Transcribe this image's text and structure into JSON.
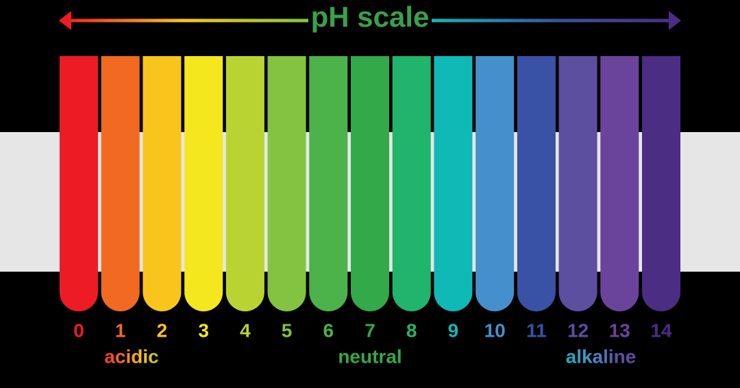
{
  "title": "pH scale",
  "tubes": [
    {
      "label": "0",
      "color": "#ed1c24"
    },
    {
      "label": "1",
      "color": "#f26a21"
    },
    {
      "label": "2",
      "color": "#f9c51c"
    },
    {
      "label": "3",
      "color": "#f5e71e"
    },
    {
      "label": "4",
      "color": "#b9d432"
    },
    {
      "label": "5",
      "color": "#84c341"
    },
    {
      "label": "6",
      "color": "#4bb34a"
    },
    {
      "label": "7",
      "color": "#33a94a"
    },
    {
      "label": "8",
      "color": "#21b46c"
    },
    {
      "label": "9",
      "color": "#0fb9b6"
    },
    {
      "label": "10",
      "color": "#4590cc"
    },
    {
      "label": "11",
      "color": "#3a52a5"
    },
    {
      "label": "12",
      "color": "#5c4fa0"
    },
    {
      "label": "13",
      "color": "#6a449b"
    },
    {
      "label": "14",
      "color": "#4b2d84"
    }
  ],
  "zones": [
    "acidic",
    "neutral",
    "alkaline"
  ]
}
